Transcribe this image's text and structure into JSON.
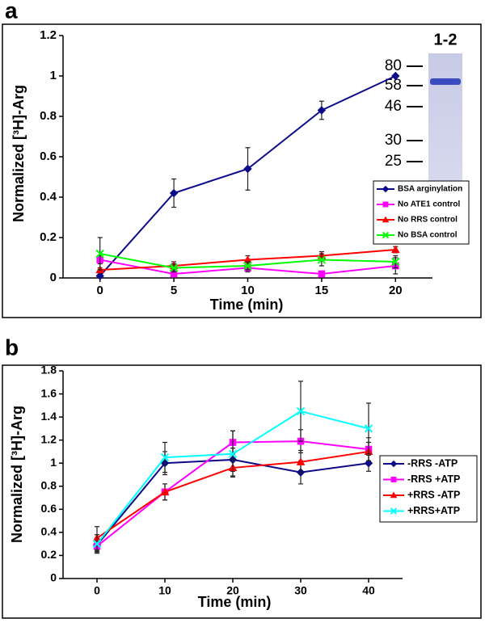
{
  "chart_data": [
    {
      "type": "line",
      "panel": "a",
      "ylabel": "Normalized [³H]-Arg",
      "xlabel": "Time (min)",
      "x": [
        0,
        5,
        10,
        15,
        20
      ],
      "xlim": [
        -2.5,
        22.5
      ],
      "ylim": [
        0,
        1.2
      ],
      "yticks": [
        0,
        0.2,
        0.4,
        0.6,
        0.8,
        1,
        1.2
      ],
      "gel_lane": "1-2",
      "gel_markers": [
        80,
        58,
        46,
        30,
        25
      ],
      "series": [
        {
          "name": "BSA arginylation",
          "color": "#0b0b8a",
          "marker": "diamond",
          "values": [
            0.01,
            0.42,
            0.54,
            0.83,
            1.0
          ],
          "errors": [
            0.01,
            0.07,
            0.105,
            0.045,
            0.005
          ]
        },
        {
          "name": "No ATE1 control",
          "color": "#ff00ff",
          "marker": "square",
          "values": [
            0.09,
            0.02,
            0.05,
            0.02,
            0.06
          ],
          "errors": [
            0.02,
            0.02,
            0.02,
            0.01,
            0.04
          ]
        },
        {
          "name": "No RRS control",
          "color": "#ff0000",
          "marker": "triangle",
          "values": [
            0.04,
            0.06,
            0.09,
            0.11,
            0.14
          ],
          "errors": [
            0.01,
            0.02,
            0.02,
            0.02,
            0.015
          ]
        },
        {
          "name": "No BSA control",
          "color": "#00ff00",
          "marker": "x",
          "values": [
            0.12,
            0.05,
            0.06,
            0.09,
            0.08
          ],
          "errors": [
            0.08,
            0.02,
            0.02,
            0.03,
            0.03
          ]
        }
      ]
    },
    {
      "type": "line",
      "panel": "b",
      "ylabel": "Normalized [³H]-Arg",
      "xlabel": "Time (min)",
      "x": [
        0,
        10,
        20,
        30,
        40
      ],
      "xlim": [
        -5,
        45
      ],
      "ylim": [
        0,
        1.8
      ],
      "yticks": [
        0,
        0.2,
        0.4,
        0.6,
        0.8,
        1,
        1.2,
        1.4,
        1.6,
        1.8
      ],
      "series": [
        {
          "name": "-RRS -ATP",
          "color": "#0b0b8a",
          "marker": "diamond",
          "values": [
            0.29,
            1.0,
            1.03,
            0.92,
            1.0
          ],
          "errors": [
            0.05,
            0.1,
            0.1,
            0.1,
            0.07
          ]
        },
        {
          "name": "-RRS +ATP",
          "color": "#ff00ff",
          "marker": "square",
          "values": [
            0.28,
            0.75,
            1.18,
            1.19,
            1.12
          ],
          "errors": [
            0.05,
            0.07,
            0.1,
            0.1,
            0.1
          ]
        },
        {
          "name": "+RRS -ATP",
          "color": "#ff0000",
          "marker": "triangle",
          "values": [
            0.35,
            0.75,
            0.96,
            1.01,
            1.1
          ],
          "errors": [
            0.1,
            0.07,
            0.07,
            0.1,
            0.08
          ]
        },
        {
          "name": "+RRS+ATP",
          "color": "#00ffff",
          "marker": "x",
          "values": [
            0.3,
            1.05,
            1.08,
            1.45,
            1.3
          ],
          "errors": [
            0.08,
            0.13,
            0.2,
            0.26,
            0.22
          ]
        }
      ]
    }
  ]
}
